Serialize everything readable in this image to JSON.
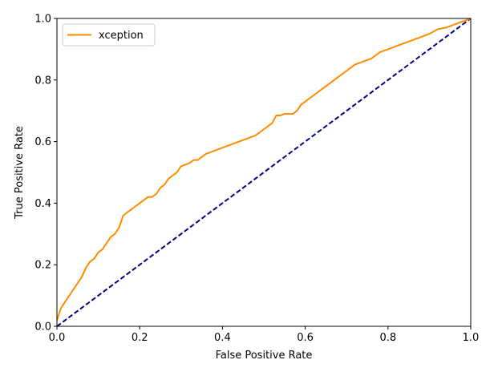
{
  "chart_data": {
    "type": "line",
    "title": "",
    "xlabel": "False Positive Rate",
    "ylabel": "True Positive Rate",
    "xlim": [
      0.0,
      1.0
    ],
    "ylim": [
      0.0,
      1.0
    ],
    "x_ticks": [
      "0.0",
      "0.2",
      "0.4",
      "0.6",
      "0.8",
      "1.0"
    ],
    "y_ticks": [
      "0.0",
      "0.2",
      "0.4",
      "0.6",
      "0.8",
      "1.0"
    ],
    "grid": false,
    "legend": {
      "placement": "top-left",
      "entries": [
        "xception"
      ]
    },
    "series": [
      {
        "name": "xception",
        "color": "#ff8c00",
        "style": "solid",
        "x": [
          0.0,
          0.005,
          0.01,
          0.02,
          0.03,
          0.04,
          0.05,
          0.06,
          0.07,
          0.08,
          0.09,
          0.1,
          0.11,
          0.12,
          0.13,
          0.14,
          0.15,
          0.16,
          0.17,
          0.18,
          0.19,
          0.2,
          0.21,
          0.22,
          0.23,
          0.24,
          0.25,
          0.26,
          0.27,
          0.28,
          0.29,
          0.3,
          0.31,
          0.32,
          0.33,
          0.34,
          0.35,
          0.36,
          0.37,
          0.38,
          0.39,
          0.4,
          0.42,
          0.44,
          0.46,
          0.48,
          0.5,
          0.52,
          0.53,
          0.54,
          0.55,
          0.56,
          0.57,
          0.58,
          0.59,
          0.6,
          0.62,
          0.64,
          0.66,
          0.68,
          0.7,
          0.72,
          0.74,
          0.76,
          0.78,
          0.8,
          0.82,
          0.84,
          0.86,
          0.88,
          0.9,
          0.92,
          0.94,
          0.96,
          0.98,
          1.0
        ],
        "y": [
          0.02,
          0.04,
          0.06,
          0.08,
          0.1,
          0.12,
          0.14,
          0.16,
          0.19,
          0.21,
          0.22,
          0.24,
          0.25,
          0.27,
          0.29,
          0.3,
          0.32,
          0.36,
          0.37,
          0.38,
          0.39,
          0.4,
          0.41,
          0.42,
          0.42,
          0.43,
          0.45,
          0.46,
          0.48,
          0.49,
          0.5,
          0.52,
          0.525,
          0.53,
          0.54,
          0.54,
          0.55,
          0.56,
          0.565,
          0.57,
          0.575,
          0.58,
          0.59,
          0.6,
          0.61,
          0.62,
          0.64,
          0.66,
          0.685,
          0.685,
          0.69,
          0.69,
          0.69,
          0.7,
          0.72,
          0.73,
          0.75,
          0.77,
          0.79,
          0.81,
          0.83,
          0.85,
          0.86,
          0.87,
          0.89,
          0.9,
          0.91,
          0.92,
          0.93,
          0.94,
          0.95,
          0.965,
          0.97,
          0.98,
          0.99,
          1.0
        ]
      },
      {
        "name": "",
        "color": "#000080",
        "style": "dashed",
        "x": [
          0.0,
          1.0
        ],
        "y": [
          0.0,
          1.0
        ]
      }
    ]
  }
}
